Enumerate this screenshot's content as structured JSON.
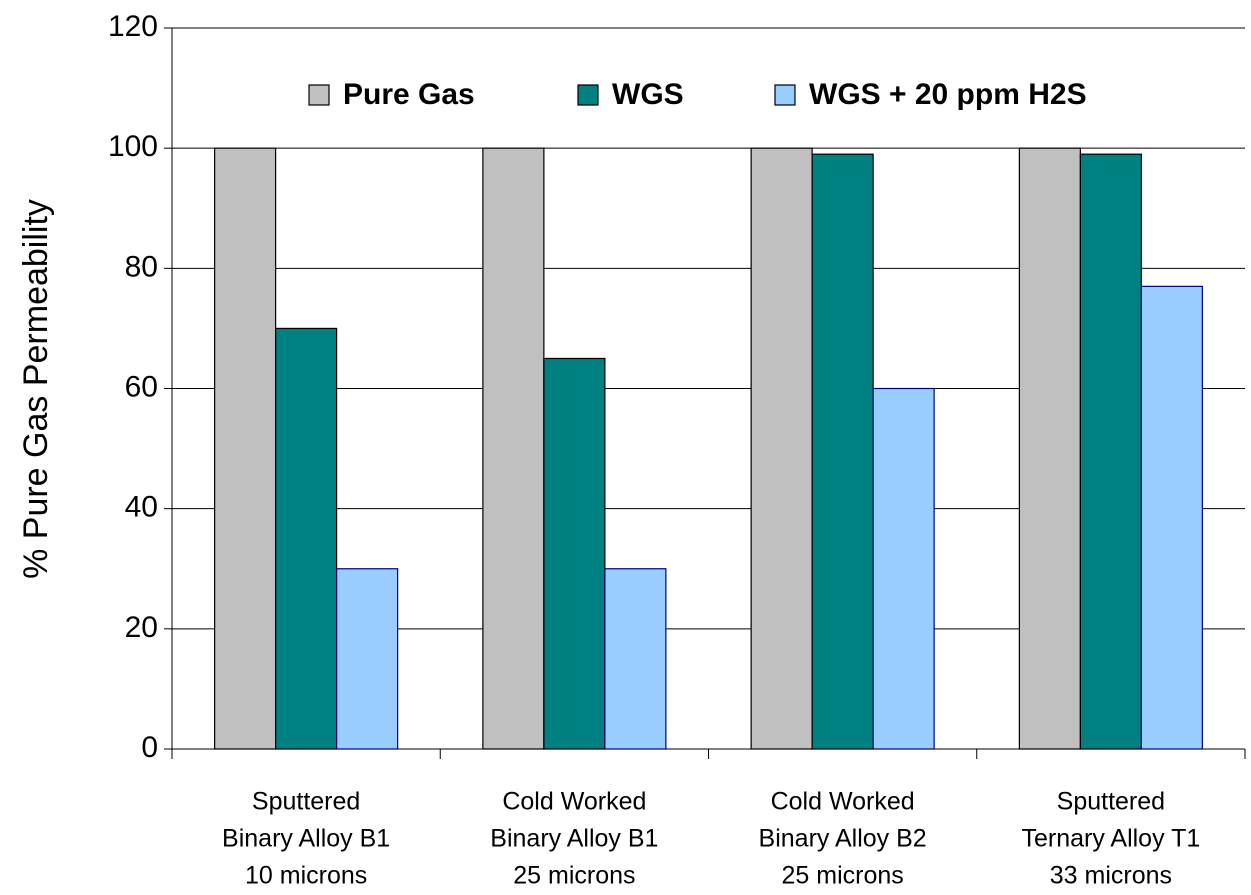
{
  "chart_data": {
    "type": "bar",
    "y_label": "% Pure Gas Permeability",
    "categories": [
      [
        "Sputtered",
        "Binary Alloy B1",
        "10 microns"
      ],
      [
        "Cold Worked",
        "Binary Alloy B1",
        "25 microns"
      ],
      [
        "Cold Worked",
        "Binary Alloy B2",
        "25 microns"
      ],
      [
        "Sputtered",
        "Ternary Alloy T1",
        "33 microns"
      ]
    ],
    "series": [
      {
        "name": "Pure Gas",
        "color": "#c0c0c0",
        "values": [
          100,
          100,
          100,
          100
        ]
      },
      {
        "name": "WGS",
        "color": "#008080",
        "values": [
          70,
          65,
          99,
          99
        ]
      },
      {
        "name": "WGS + 20 ppm H2S",
        "color": "#99ccff",
        "values": [
          30,
          30,
          60,
          77
        ]
      }
    ],
    "ylim": [
      0,
      120
    ],
    "yticks": [
      0,
      20,
      40,
      60,
      80,
      100,
      120
    ],
    "grid": true,
    "legend": "top"
  }
}
